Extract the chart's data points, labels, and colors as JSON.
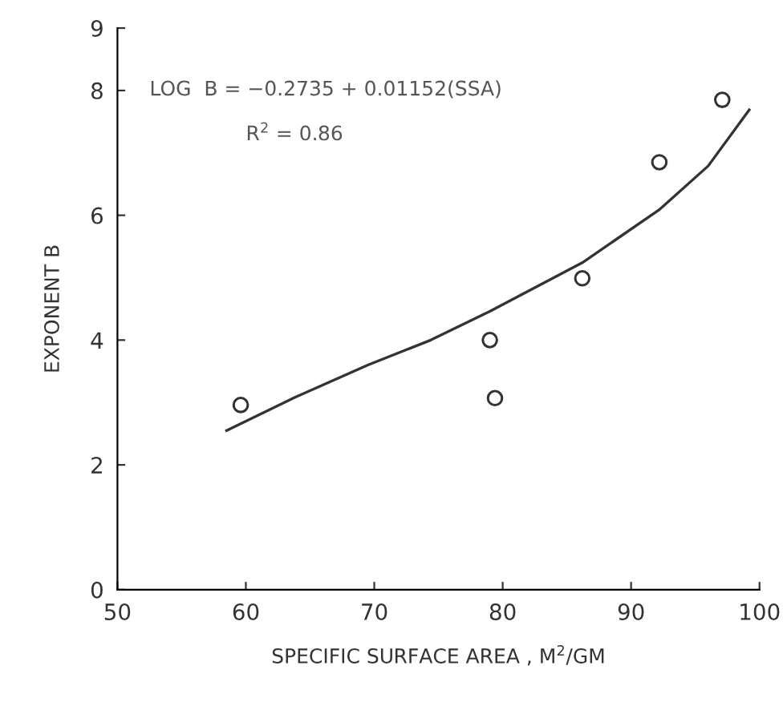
{
  "chart_data": {
    "type": "scatter",
    "xlabel": "SPECIFIC SURFACE AREA , M$^{2}$/GM",
    "ylabel": "EXPONENT B",
    "annotations": [
      "LOG  B = −0.2735 + 0.01152(SSA)",
      "R$^{2}$ = 0.86"
    ],
    "xlim": [
      50,
      100
    ],
    "ylim": [
      0,
      9
    ],
    "xticks": [
      50,
      60,
      70,
      80,
      90,
      100
    ],
    "yticks": [
      0,
      2,
      4,
      6,
      8,
      9
    ],
    "grid": false,
    "legend": false,
    "marker": "circle",
    "series": [
      {
        "color": "#333333",
        "x": [
          59.6,
          79.0,
          79.4,
          86.2,
          92.2,
          97.1
        ],
        "values": [
          2.96,
          4.0,
          3.07,
          4.99,
          6.85,
          7.85
        ]
      },
      {
        "type": "line",
        "color": "#333333",
        "line_style": "solid",
        "marker": "none",
        "x": [
          58.5,
          63.8,
          69.5,
          74.4,
          79.0,
          86.2,
          92.2,
          96.0,
          99.2
        ],
        "values": [
          2.55,
          3.08,
          3.6,
          4.0,
          4.46,
          5.24,
          6.09,
          6.79,
          7.69
        ]
      }
    ]
  }
}
